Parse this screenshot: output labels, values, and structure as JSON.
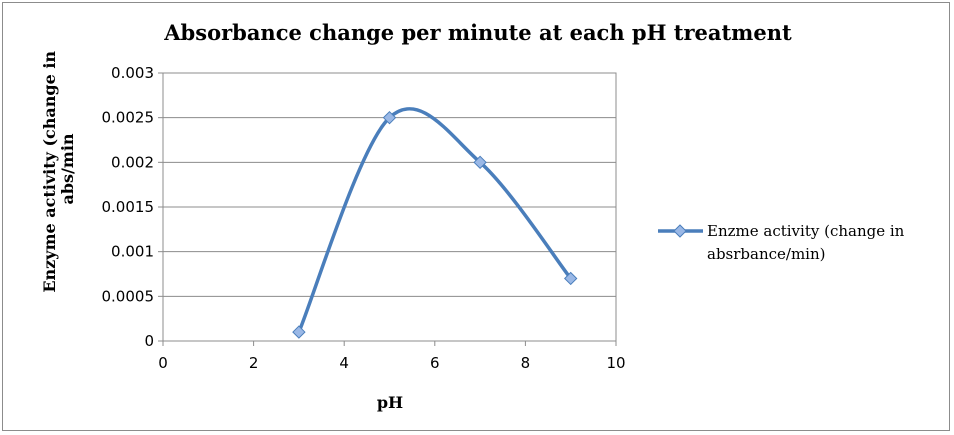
{
  "chart_data": {
    "type": "scatter",
    "title": "Absorbance change per minute at each pH treatment",
    "xlabel": "pH",
    "ylabel_lines": [
      "Enzyme activity (change in",
      "abs/min"
    ],
    "xlim": [
      0,
      10
    ],
    "ylim": [
      0,
      0.003
    ],
    "x_ticks": [
      "0",
      "2",
      "4",
      "6",
      "8",
      "10"
    ],
    "y_ticks": [
      "0",
      "0.0005",
      "0.001",
      "0.0015",
      "0.002",
      "0.0025",
      "0.003"
    ],
    "grid": "horizontal",
    "smooth_line": true,
    "legend_position": "right",
    "series": [
      {
        "name_lines": [
          "Enzme activity (change in",
          "absrbance/min)"
        ],
        "x": [
          3,
          5,
          7,
          9
        ],
        "y": [
          0.0001,
          0.0025,
          0.002,
          0.0007
        ],
        "color": "#4a7ebb",
        "marker": "diamond"
      }
    ]
  }
}
